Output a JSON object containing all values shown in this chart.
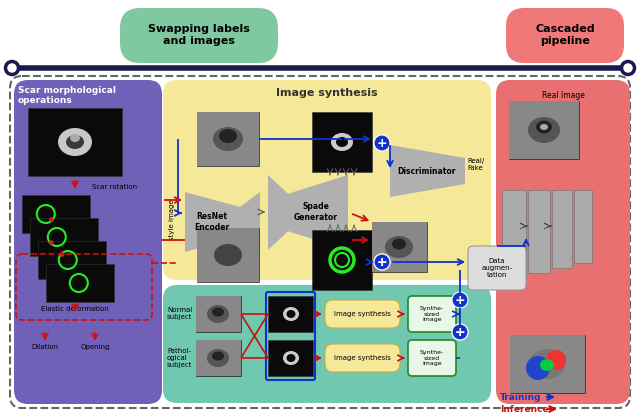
{
  "bg_color": "#ffffff",
  "timeline_color": "#1a1a4e",
  "bubble1_color": "#80c8a0",
  "bubble1_text": "Swapping labels\nand images",
  "bubble2_color": "#f07878",
  "bubble2_text": "Cascaded\npipeline",
  "left_panel_color": "#7060b8",
  "left_panel_label": "Scar morphological\noperations",
  "middle_panel_color": "#f5e898",
  "middle_panel_label": "Image synthesis",
  "right_panel_color": "#e87070",
  "bottom_panel_color": "#70c8b0",
  "red_arrow_color": "#cc1111",
  "blue_arrow_color": "#1133cc",
  "gray_color": "#aaaaaa",
  "dark_gray": "#888888"
}
